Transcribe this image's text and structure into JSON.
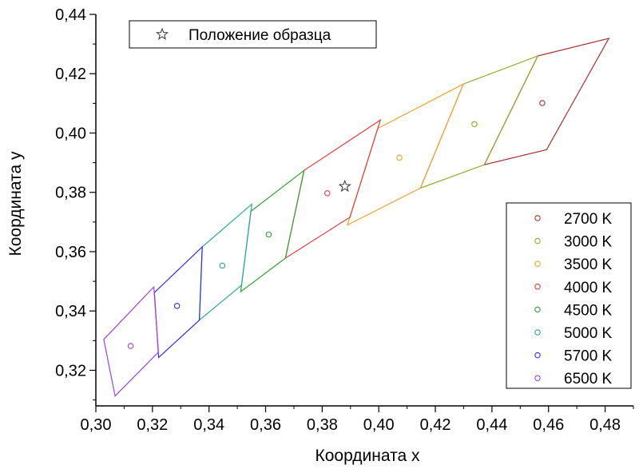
{
  "chart_data": {
    "type": "scatter",
    "xlabel": "Координата x",
    "ylabel": "Координата y",
    "xlim": [
      0.3,
      0.49
    ],
    "ylim": [
      0.308,
      0.44
    ],
    "x_ticks": [
      "0,30",
      "0,32",
      "0,34",
      "0,36",
      "0,38",
      "0,40",
      "0,42",
      "0,44",
      "0,46",
      "0,48"
    ],
    "y_ticks": [
      "0,32",
      "0,34",
      "0,36",
      "0,38",
      "0,40",
      "0,42",
      "0,44"
    ],
    "grid": false,
    "legend_position": "right",
    "sample": {
      "label": "Положение образца",
      "x": 0.388,
      "y": 0.382,
      "color": "#333333",
      "icon": "star-icon"
    },
    "series": [
      {
        "name": "2700 K",
        "color": "#a83232",
        "center": [
          0.4578,
          0.4101
        ],
        "quad": [
          [
            0.4562,
            0.426
          ],
          [
            0.4813,
            0.4319
          ],
          [
            0.4593,
            0.3944
          ],
          [
            0.4373,
            0.3893
          ]
        ]
      },
      {
        "name": "3000 K",
        "color": "#9aa52a",
        "center": [
          0.4338,
          0.403
        ],
        "quad": [
          [
            0.4299,
            0.4165
          ],
          [
            0.4562,
            0.426
          ],
          [
            0.4373,
            0.3893
          ],
          [
            0.4147,
            0.3814
          ]
        ]
      },
      {
        "name": "3500 K",
        "color": "#f0a030",
        "center": [
          0.4073,
          0.3917
        ],
        "quad": [
          [
            0.3996,
            0.4015
          ],
          [
            0.4299,
            0.4165
          ],
          [
            0.4147,
            0.3814
          ],
          [
            0.3889,
            0.369
          ]
        ]
      },
      {
        "name": "4000 K",
        "color": "#e04040",
        "center": [
          0.3818,
          0.3797
        ],
        "quad": [
          [
            0.3736,
            0.3874
          ],
          [
            0.4006,
            0.4044
          ],
          [
            0.3898,
            0.3716
          ],
          [
            0.367,
            0.3578
          ]
        ]
      },
      {
        "name": "4500 K",
        "color": "#33a033",
        "center": [
          0.3611,
          0.3658
        ],
        "quad": [
          [
            0.3548,
            0.3736
          ],
          [
            0.3736,
            0.3874
          ],
          [
            0.367,
            0.3578
          ],
          [
            0.3512,
            0.3465
          ]
        ]
      },
      {
        "name": "5000 K",
        "color": "#2aa89a",
        "center": [
          0.3447,
          0.3553
        ],
        "quad": [
          [
            0.3376,
            0.3616
          ],
          [
            0.3551,
            0.376
          ],
          [
            0.3515,
            0.3487
          ],
          [
            0.3366,
            0.3369
          ]
        ]
      },
      {
        "name": "5700 K",
        "color": "#3030d8",
        "center": [
          0.3287,
          0.3417
        ],
        "quad": [
          [
            0.3207,
            0.3462
          ],
          [
            0.3376,
            0.3616
          ],
          [
            0.3366,
            0.3369
          ],
          [
            0.3222,
            0.3243
          ]
        ]
      },
      {
        "name": "6500 K",
        "color": "#a040e0",
        "center": [
          0.3123,
          0.3282
        ],
        "quad": [
          [
            0.3028,
            0.3304
          ],
          [
            0.3205,
            0.3481
          ],
          [
            0.3221,
            0.3261
          ],
          [
            0.3068,
            0.3113
          ]
        ]
      }
    ]
  }
}
